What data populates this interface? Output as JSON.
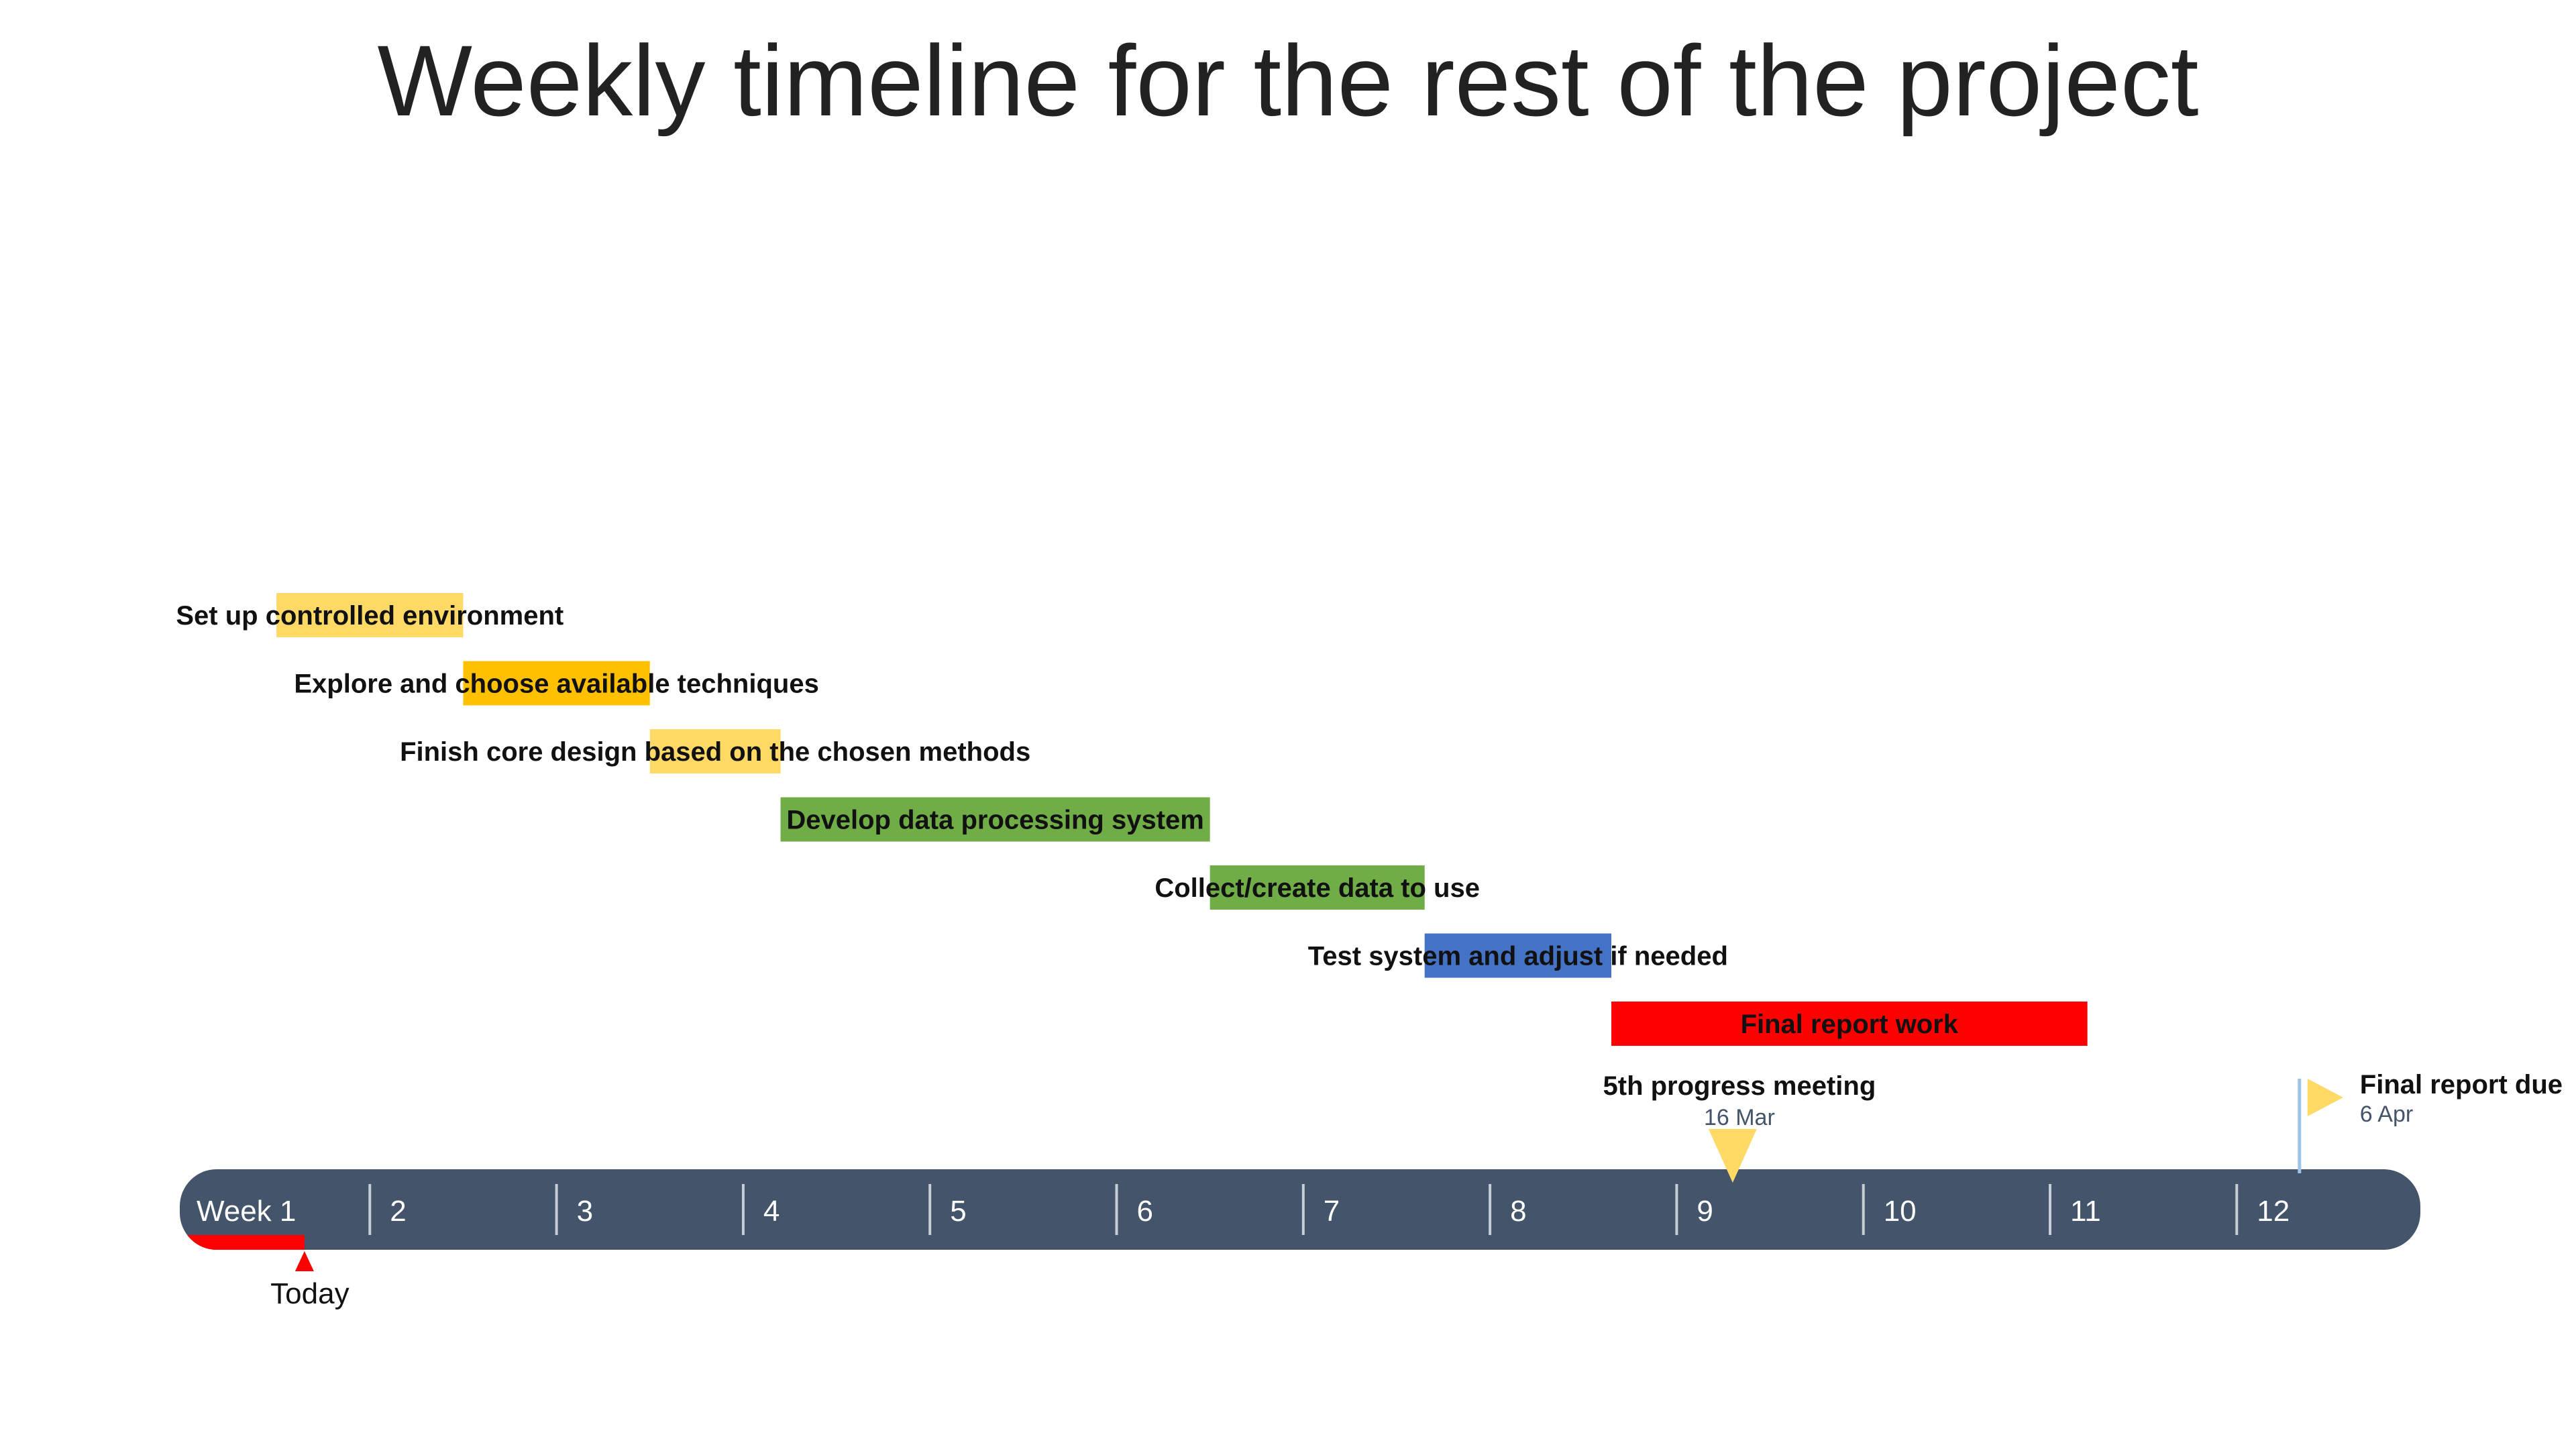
{
  "title": "Weekly timeline for the rest of the project",
  "chart_data": {
    "type": "gantt",
    "axis": {
      "unit": "week",
      "range": [
        1,
        13
      ],
      "tick_labels": [
        "Week 1",
        "2",
        "3",
        "4",
        "5",
        "6",
        "7",
        "8",
        "9",
        "10",
        "11",
        "12"
      ]
    },
    "today": {
      "label": "Today",
      "week": 1.65
    },
    "tasks": [
      {
        "label": "Set up controlled environment",
        "start": 1.5,
        "end": 2.5,
        "color": "#ffd966"
      },
      {
        "label": "Explore and choose available techniques",
        "start": 2.5,
        "end": 3.5,
        "color": "#ffc000"
      },
      {
        "label": "Finish core design based on the chosen methods",
        "start": 3.5,
        "end": 4.2,
        "color": "#ffd966"
      },
      {
        "label": "Develop data processing system",
        "start": 4.2,
        "end": 6.5,
        "color": "#70ad47"
      },
      {
        "label": "Collect/create data to use",
        "start": 6.5,
        "end": 7.65,
        "color": "#70ad47"
      },
      {
        "label": "Test system and adjust if needed",
        "start": 7.65,
        "end": 8.65,
        "color": "#4472c4"
      },
      {
        "label": "Final report work",
        "start": 8.65,
        "end": 11.2,
        "color": "#ff0000"
      }
    ],
    "milestones": [
      {
        "label": "5th progress meeting",
        "date": "16 Mar",
        "week": 9.3,
        "shape": "triangle",
        "color": "#ffd966"
      },
      {
        "label": "Final report due",
        "date": "6 Apr",
        "week": 12.3,
        "shape": "flag",
        "color": "#ffd966"
      }
    ],
    "colors": {
      "axis_bar": "#44546a",
      "axis_text": "#ffffff",
      "today": "#ff0000",
      "date_text": "#44546a",
      "flag_pole": "#9dc3e6"
    }
  }
}
